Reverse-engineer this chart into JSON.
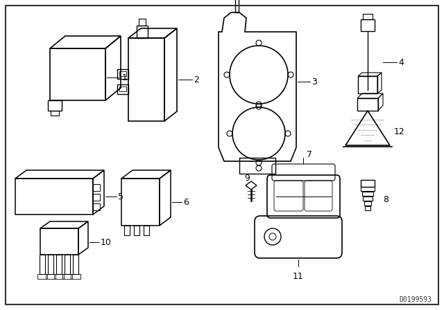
{
  "bg_color": "#ffffff",
  "border_color": "#333333",
  "line_color": "#000000",
  "watermark": "D0199593",
  "fig_width": 6.4,
  "fig_height": 4.48,
  "dpi": 100
}
